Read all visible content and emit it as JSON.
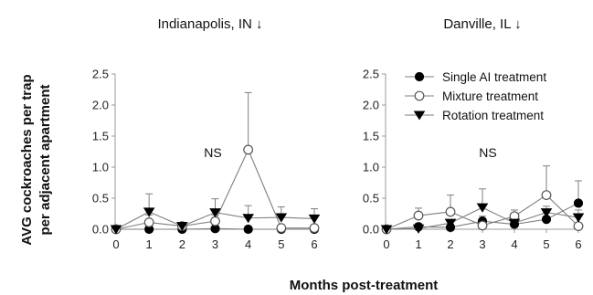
{
  "chart_data": [
    {
      "type": "line",
      "title": "Indianapolis, IN ↓",
      "annotation": "NS",
      "x": [
        0,
        1,
        2,
        3,
        4,
        5,
        6
      ],
      "xlim": [
        0,
        6
      ],
      "ylim": [
        0,
        2.5
      ],
      "y_ticks": [
        "0.0",
        "0.5",
        "1.0",
        "1.5",
        "2.0",
        "2.5"
      ],
      "x_ticks": [
        "0",
        "1",
        "2",
        "3",
        "4",
        "5",
        "6"
      ],
      "series": [
        {
          "name": "Single AI treatment",
          "marker": "filled-circle",
          "values": [
            0.0,
            0.0,
            0.0,
            0.01,
            0.0,
            0.0,
            0.0
          ],
          "errors": [
            0,
            0,
            0,
            0,
            0,
            0,
            0
          ]
        },
        {
          "name": "Mixture treatment",
          "marker": "open-circle",
          "values": [
            0.0,
            0.11,
            0.05,
            0.13,
            1.28,
            0.02,
            0.02
          ],
          "errors": [
            0,
            0.12,
            0,
            0.1,
            0.92,
            0,
            0
          ]
        },
        {
          "name": "Rotation treatment",
          "marker": "filled-triangle-down",
          "values": [
            0.0,
            0.28,
            0.05,
            0.27,
            0.18,
            0.19,
            0.17
          ],
          "errors": [
            0,
            0.29,
            0.02,
            0.22,
            0.2,
            0.17,
            0.16
          ]
        }
      ]
    },
    {
      "type": "line",
      "title": "Danville, IL ↓",
      "annotation": "NS",
      "x": [
        0,
        1,
        2,
        3,
        4,
        5,
        6
      ],
      "xlim": [
        0,
        6
      ],
      "ylim": [
        0,
        2.5
      ],
      "y_ticks": [
        "0.0",
        "0.5",
        "1.0",
        "1.5",
        "2.0",
        "2.5"
      ],
      "x_ticks": [
        "0",
        "1",
        "2",
        "3",
        "4",
        "5",
        "6"
      ],
      "series": [
        {
          "name": "Single AI treatment",
          "marker": "filled-circle",
          "values": [
            0.0,
            0.04,
            0.03,
            0.13,
            0.08,
            0.16,
            0.42
          ],
          "errors": [
            0,
            0.05,
            0.05,
            0.08,
            0.06,
            0.1,
            0.36
          ]
        },
        {
          "name": "Mixture treatment",
          "marker": "open-circle",
          "values": [
            0.0,
            0.22,
            0.28,
            0.06,
            0.21,
            0.55,
            0.05
          ],
          "errors": [
            0,
            0.12,
            0.27,
            0.05,
            0.1,
            0.47,
            0.05
          ]
        },
        {
          "name": "Rotation treatment",
          "marker": "filled-triangle-down",
          "values": [
            0.0,
            0.01,
            0.1,
            0.35,
            0.1,
            0.27,
            0.19
          ],
          "errors": [
            0,
            0.02,
            0.05,
            0.3,
            0.06,
            0.1,
            0.12
          ]
        }
      ]
    }
  ],
  "shared": {
    "ylabel_line1": "AVG cockroaches per  trap",
    "ylabel_line2": "per adjacent apartment",
    "xlabel": "Months post-treatment",
    "legend": [
      {
        "label": "Single AI treatment",
        "marker": "filled-circle"
      },
      {
        "label": "Mixture treatment",
        "marker": "open-circle"
      },
      {
        "label": "Rotation treatment",
        "marker": "filled-triangle-down"
      }
    ],
    "line_color": "#7f7f7f",
    "marker_color": "#000000"
  }
}
